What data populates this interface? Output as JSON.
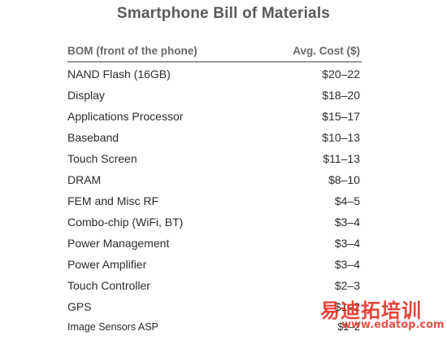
{
  "title": "Smartphone Bill of Materials",
  "chart_data": {
    "type": "table",
    "title": "Smartphone Bill of Materials",
    "columns": [
      "BOM (front of the phone)",
      "Avg. Cost ($)"
    ],
    "rows": [
      {
        "component": "NAND Flash (16GB)",
        "cost": "$20–22"
      },
      {
        "component": "Display",
        "cost": "$18–20"
      },
      {
        "component": "Applications Processor",
        "cost": "$15–17"
      },
      {
        "component": "Baseband",
        "cost": "$10–13"
      },
      {
        "component": "Touch Screen",
        "cost": "$11–13"
      },
      {
        "component": "DRAM",
        "cost": "$8–10"
      },
      {
        "component": "FEM and Misc RF",
        "cost": "$4–5"
      },
      {
        "component": "Combo-chip (WiFi, BT)",
        "cost": "$3–4"
      },
      {
        "component": "Power Management",
        "cost": "$3–4"
      },
      {
        "component": "Power Amplifier",
        "cost": "$3–4"
      },
      {
        "component": "Touch Controller",
        "cost": "$2–3"
      },
      {
        "component": "GPS",
        "cost": "$1–2"
      },
      {
        "component": "Image Sensors ASP",
        "cost": "$1–2"
      }
    ]
  },
  "watermark": {
    "text_cn": "易迪拓培训",
    "url": "www.edatop.com",
    "color": "#e2352a"
  }
}
